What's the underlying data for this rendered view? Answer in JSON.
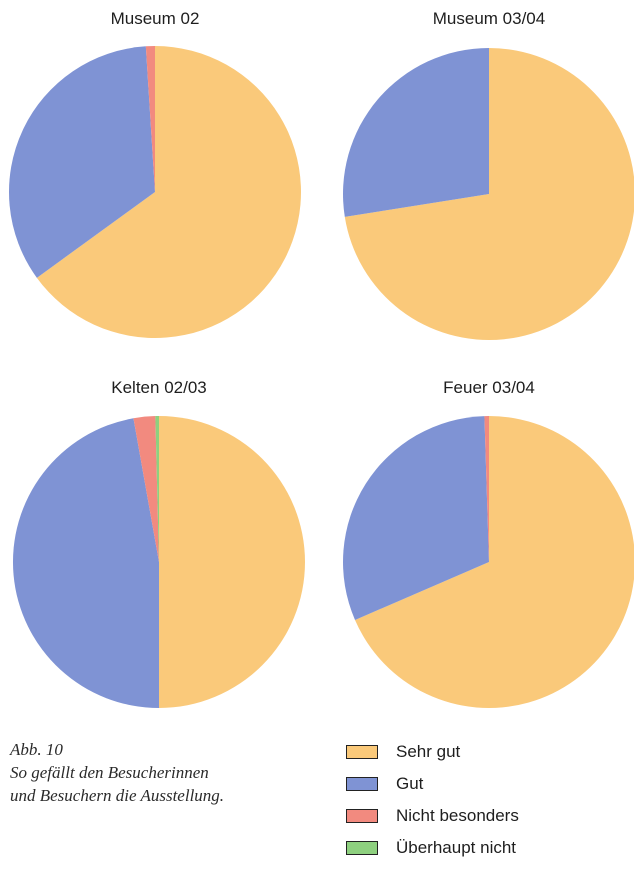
{
  "chart_data": [
    {
      "type": "pie",
      "title": "Museum 02",
      "categories": [
        "Sehr gut",
        "Gut",
        "Nicht besonders",
        "Überhaupt nicht"
      ],
      "values": [
        65.0,
        34.0,
        1.0,
        0.0
      ]
    },
    {
      "type": "pie",
      "title": "Museum 03/04",
      "categories": [
        "Sehr gut",
        "Gut",
        "Nicht besonders",
        "Überhaupt nicht"
      ],
      "values": [
        72.5,
        27.5,
        0.0,
        0.0
      ]
    },
    {
      "type": "pie",
      "title": "Kelten 02/03",
      "categories": [
        "Sehr gut",
        "Gut",
        "Nicht besonders",
        "Überhaupt nicht"
      ],
      "values": [
        50.0,
        47.2,
        2.4,
        0.4
      ]
    },
    {
      "type": "pie",
      "title": "Feuer 03/04",
      "categories": [
        "Sehr gut",
        "Gut",
        "Nicht besonders",
        "Überhaupt nicht"
      ],
      "values": [
        68.5,
        31.0,
        0.5,
        0.0
      ]
    }
  ],
  "legend": [
    {
      "label": "Sehr gut",
      "color": "#fac97a"
    },
    {
      "label": "Gut",
      "color": "#7f93d4"
    },
    {
      "label": "Nicht besonders",
      "color": "#f28a7f"
    },
    {
      "label": "Überhaupt nicht",
      "color": "#8ed07f"
    }
  ],
  "caption": {
    "line1": "Abb. 10",
    "line2": "So gefällt den Besucherinnen",
    "line3": "und Besuchern die Ausstellung."
  }
}
